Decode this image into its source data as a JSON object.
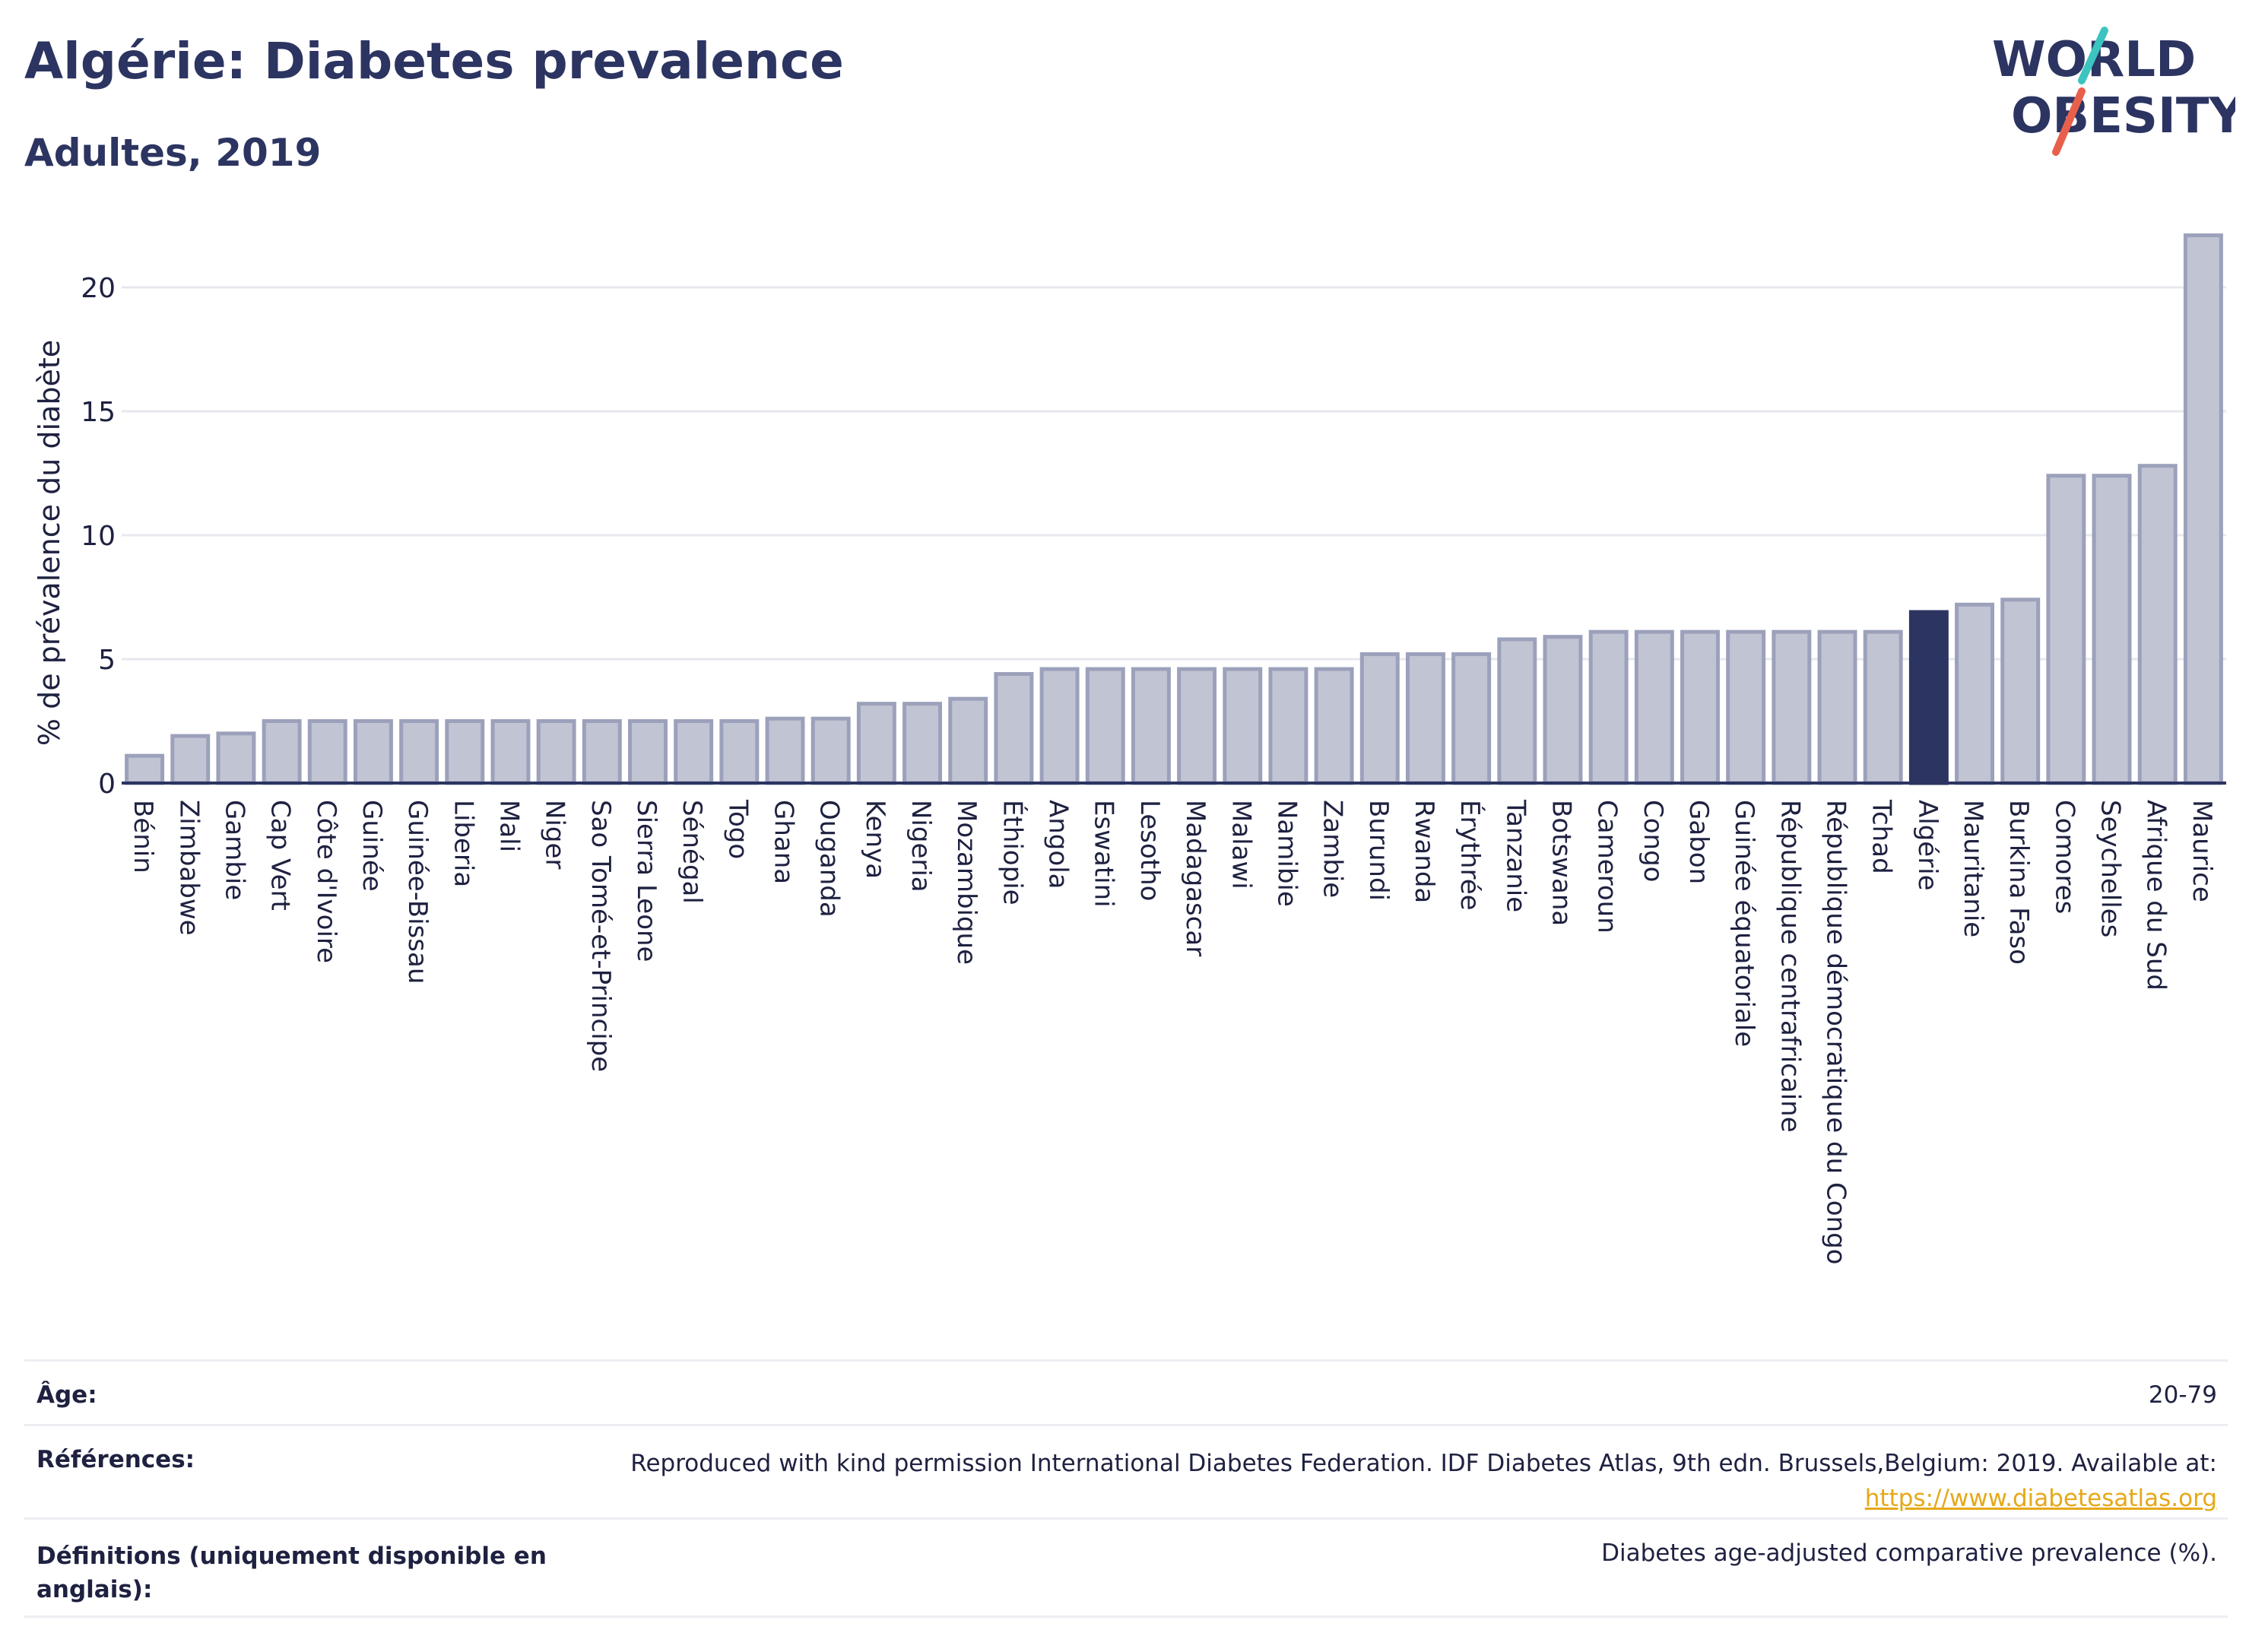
{
  "title": "Algérie: Diabetes prevalence",
  "subtitle": "Adultes, 2019",
  "logo": {
    "line1": "WORLD",
    "line2": "OBESITY",
    "accent_teal": "#3cc4c0",
    "accent_red": "#e8604c"
  },
  "colors": {
    "bar": "#c1c4d3",
    "bar_edge": "#9ca1bb",
    "highlight": "#2c3461",
    "grid": "#e6e8ee",
    "axis": "#2c3461"
  },
  "chart_data": {
    "type": "bar",
    "ylabel": "% de prévalence du diabète",
    "ylim": [
      0,
      22.5
    ],
    "yticks": [
      0,
      5,
      10,
      15,
      20
    ],
    "grid": true,
    "highlight": "Algérie",
    "categories": [
      "Bénin",
      "Zimbabwe",
      "Gambie",
      "Cap Vert",
      "Côte d'Ivoire",
      "Guinée",
      "Guinée-Bissau",
      "Liberia",
      "Mali",
      "Niger",
      "Sao Tomé-et-Principe",
      "Sierra Leone",
      "Sénégal",
      "Togo",
      "Ghana",
      "Ouganda",
      "Kenya",
      "Nigeria",
      "Mozambique",
      "Éthiopie",
      "Angola",
      "Eswatini",
      "Lesotho",
      "Madagascar",
      "Malawi",
      "Namibie",
      "Zambie",
      "Burundi",
      "Rwanda",
      "Érythrée",
      "Tanzanie",
      "Botswana",
      "Cameroun",
      "Congo",
      "Gabon",
      "Guinée équatoriale",
      "République centrafricaine",
      "République démocratique du Congo",
      "Tchad",
      "Algérie",
      "Mauritanie",
      "Burkina Faso",
      "Comores",
      "Seychelles",
      "Afrique du Sud",
      "Maurice"
    ],
    "values": [
      1.1,
      1.9,
      2.0,
      2.5,
      2.5,
      2.5,
      2.5,
      2.5,
      2.5,
      2.5,
      2.5,
      2.5,
      2.5,
      2.5,
      2.6,
      2.6,
      3.2,
      3.2,
      3.4,
      4.4,
      4.6,
      4.6,
      4.6,
      4.6,
      4.6,
      4.6,
      4.6,
      5.2,
      5.2,
      5.2,
      5.8,
      5.9,
      6.1,
      6.1,
      6.1,
      6.1,
      6.1,
      6.1,
      6.1,
      6.9,
      7.2,
      7.4,
      12.4,
      12.4,
      12.8,
      22.1
    ]
  },
  "footer": {
    "age_label": "Âge:",
    "age_value": "20-79",
    "ref_label": "Références:",
    "ref_text": "Reproduced with kind permission International Diabetes Federation. IDF Diabetes Atlas, 9th edn. Brussels,Belgium: 2019. Available at:",
    "ref_link": "https://www.diabetesatlas.org",
    "def_label_1": "Définitions (uniquement disponible en",
    "def_label_2": "anglais):",
    "def_text": "Diabetes age-adjusted comparative prevalence (%)."
  }
}
